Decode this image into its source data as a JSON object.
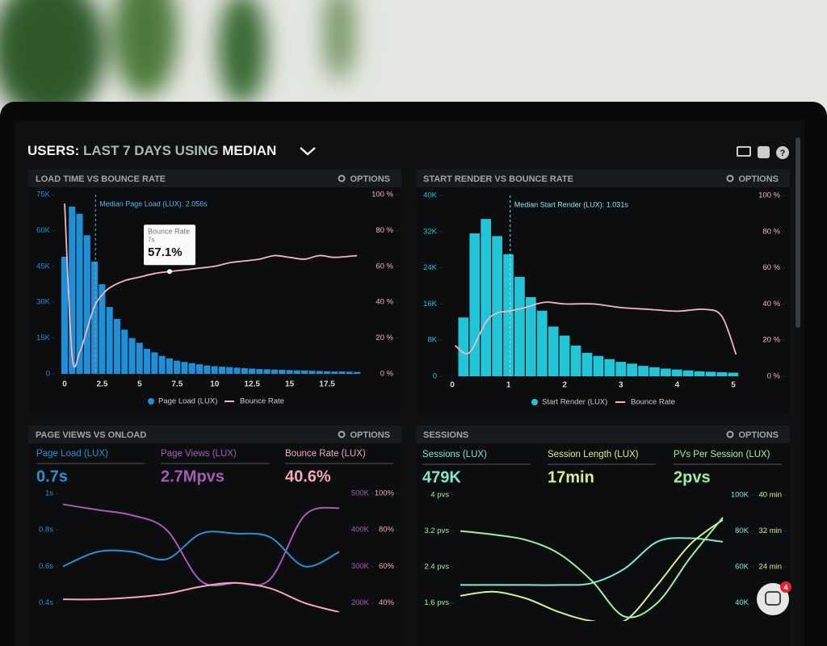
{
  "header": {
    "users": "USERS:",
    "range": "LAST 7 DAYS",
    "using": "USING",
    "stat": "MEDIAN"
  },
  "notification_count": "4",
  "chart_data": [
    {
      "type": "histogram",
      "title": "LOAD TIME VS BOUNCE RATE",
      "options": "OPTIONS",
      "bins": [
        -0.25,
        0.25,
        0.75,
        1.25,
        1.75,
        2.25,
        2.75,
        3.25,
        3.75,
        4.25,
        4.75,
        5.25,
        5.75,
        6.25,
        6.75,
        7.25,
        7.75,
        8.25,
        8.75,
        9.25,
        9.75,
        10.25,
        10.75,
        11.25,
        11.75,
        12.25,
        12.75,
        13.25,
        13.75,
        14.25,
        14.75,
        15.25,
        15.75,
        16.25,
        16.75,
        17.25,
        17.75,
        18.25,
        18.75,
        19.25,
        19.75
      ],
      "xlim": [
        -0.25,
        19.75
      ],
      "xticks": [
        0,
        2.5,
        5,
        7.5,
        10,
        12.5,
        15,
        17.5
      ],
      "ylim": [
        0,
        75000
      ],
      "yticks": [
        0,
        {
          "value": 15000,
          "label": "15K"
        },
        {
          "value": 30000,
          "label": "30K"
        },
        {
          "value": 45000,
          "label": "45K"
        },
        {
          "value": 60000,
          "label": "60K"
        },
        {
          "value": 75000,
          "label": "75K"
        }
      ],
      "y2lim": [
        0,
        100
      ],
      "y2ticks": [
        {
          "value": 0,
          "label": "0 %"
        },
        {
          "value": 20,
          "label": "20 %"
        },
        {
          "value": 40,
          "label": "40 %"
        },
        {
          "value": 60,
          "label": "60 %"
        },
        {
          "value": 80,
          "label": "80 %"
        },
        {
          "value": 100,
          "label": "100 %"
        }
      ],
      "series": [
        {
          "name": "Page Load (LUX)",
          "color": "#1f8fd8",
          "values": [
            49000,
            70000,
            67000,
            58000,
            47000,
            37500,
            28000,
            23000,
            18500,
            15000,
            13000,
            10500,
            9000,
            7500,
            6500,
            5500,
            5000,
            4500,
            4000,
            3500,
            3200,
            3000,
            2800,
            2600,
            2400,
            2200,
            2000,
            1900,
            1800,
            1700,
            1600,
            1500,
            1400,
            1300,
            1200,
            1100,
            1000,
            1000,
            900,
            800
          ]
        },
        {
          "name": "Bounce Rate",
          "color": "#f2b6c0",
          "axis": "y2",
          "x": [
            0,
            0.5,
            1,
            1.5,
            2,
            2.5,
            3,
            4,
            5,
            6,
            7,
            8,
            9,
            10,
            11,
            12,
            13,
            14,
            15,
            16,
            17,
            18,
            19.5
          ],
          "values": [
            95,
            10,
            12,
            25,
            38,
            44,
            48,
            52,
            54,
            56,
            57.1,
            58,
            59,
            60,
            62,
            63,
            64,
            66,
            65,
            64,
            66,
            65,
            66
          ]
        }
      ],
      "annotation": {
        "text": "Median Page Load (LUX): 2.056s",
        "x": 2.056
      },
      "tooltip": {
        "title": "Bounce Rate",
        "x_label": "7s",
        "x": 7,
        "value_label": "57.1%",
        "value": 57.1
      }
    },
    {
      "type": "histogram",
      "title": "START RENDER VS BOUNCE RATE",
      "options": "OPTIONS",
      "bins": [
        0.1,
        0.3,
        0.5,
        0.7,
        0.9,
        1.1,
        1.3,
        1.5,
        1.7,
        1.9,
        2.1,
        2.3,
        2.5,
        2.7,
        2.9,
        3.1,
        3.3,
        3.5,
        3.7,
        3.9,
        4.1,
        4.3,
        4.5,
        4.7,
        4.9,
        5.1
      ],
      "xlim": [
        0,
        5.2
      ],
      "xticks": [
        0,
        1,
        2,
        3,
        4,
        5
      ],
      "ylim": [
        0,
        40000
      ],
      "yticks": [
        0,
        {
          "value": 8000,
          "label": "8K"
        },
        {
          "value": 16000,
          "label": "16K"
        },
        {
          "value": 24000,
          "label": "24K"
        },
        {
          "value": 32000,
          "label": "32K"
        },
        {
          "value": 40000,
          "label": "40K"
        }
      ],
      "y2lim": [
        0,
        100
      ],
      "y2ticks": [
        {
          "value": 0,
          "label": "0 %"
        },
        {
          "value": 20,
          "label": "20 %"
        },
        {
          "value": 40,
          "label": "40 %"
        },
        {
          "value": 60,
          "label": "60 %"
        },
        {
          "value": 80,
          "label": "80 %"
        },
        {
          "value": 100,
          "label": "100 %"
        }
      ],
      "series": [
        {
          "name": "Start Render (LUX)",
          "color": "#20c6d8",
          "values": [
            13000,
            31600,
            34800,
            31000,
            27000,
            22000,
            17500,
            14500,
            11000,
            9000,
            6800,
            5200,
            4500,
            3800,
            3200,
            2800,
            2300,
            2000,
            1700,
            1500,
            1300,
            1100,
            1000,
            900,
            800
          ]
        },
        {
          "name": "Bounce Rate",
          "color": "#f2b6c0",
          "axis": "y2",
          "x": [
            0.05,
            0.3,
            0.6,
            0.8,
            1,
            1.3,
            1.5,
            1.7,
            2,
            2.5,
            3,
            3.5,
            4,
            4.5,
            4.8,
            5.05
          ],
          "values": [
            17,
            13,
            30,
            35,
            36,
            38,
            40,
            41,
            40,
            40,
            38,
            37,
            36,
            37,
            33,
            12
          ]
        }
      ],
      "annotation": {
        "text": "Median Start Render (LUX): 1.031s",
        "x": 1.031
      }
    },
    {
      "type": "line",
      "title": "PAGE VIEWS VS ONLOAD",
      "options": "OPTIONS",
      "categories": [
        null,
        null,
        null,
        null,
        null,
        null,
        null,
        null,
        null
      ],
      "ylim": [
        0.35,
        1
      ],
      "yticks": [
        {
          "value": 1,
          "label": "1s"
        },
        {
          "value": 0.8,
          "label": "0.8s"
        },
        {
          "value": 0.6,
          "label": "0.6s"
        },
        {
          "value": 0.4,
          "label": "0.4s"
        }
      ],
      "y2lim": [
        175000,
        500000
      ],
      "y2ticks": [
        {
          "value": 500000,
          "label": "500K"
        },
        {
          "value": 400000,
          "label": "400K"
        },
        {
          "value": 300000,
          "label": "300K"
        },
        {
          "value": 200000,
          "label": "200K"
        }
      ],
      "y3lim": [
        35,
        100
      ],
      "y3ticks": [
        {
          "value": 100,
          "label": "100%"
        },
        {
          "value": 80,
          "label": "80%"
        },
        {
          "value": 60,
          "label": "60%"
        },
        {
          "value": 40,
          "label": "40%"
        }
      ],
      "series": [
        {
          "name": "Page Load (LUX)",
          "summary": "0.7s",
          "color": "#2e8fd0",
          "values": [
            0.6,
            0.68,
            0.68,
            0.64,
            0.78,
            0.78,
            0.76,
            0.6,
            0.68
          ]
        },
        {
          "name": "Page Views (LUX)",
          "summary": "2.7Mpvs",
          "color": "#a65cb6",
          "axis": "y2",
          "values": [
            470000,
            455000,
            440000,
            400000,
            260000,
            255000,
            265000,
            440000,
            460000
          ]
        },
        {
          "name": "Bounce Rate (LUX)",
          "summary": "40.6%",
          "color": "#f3a8b8",
          "axis": "y3",
          "values": [
            42,
            42,
            43,
            45,
            49,
            51,
            48,
            40,
            35
          ]
        }
      ]
    },
    {
      "type": "line",
      "title": "SESSIONS",
      "options": "OPTIONS",
      "categories": [
        null,
        null,
        null,
        null,
        null,
        null,
        null,
        null,
        null
      ],
      "ylim": [
        1.2,
        4
      ],
      "yticks": [
        {
          "value": 4,
          "label": "4 pvs"
        },
        {
          "value": 3.2,
          "label": "3.2 pvs"
        },
        {
          "value": 2.4,
          "label": "2.4 pvs"
        },
        {
          "value": 1.6,
          "label": "1.6 pvs"
        }
      ],
      "y2lim": [
        30000,
        100000
      ],
      "y2ticks": [
        {
          "value": 100000,
          "label": "100K"
        },
        {
          "value": 80000,
          "label": "80K"
        },
        {
          "value": 60000,
          "label": "60K"
        },
        {
          "value": 40000,
          "label": "40K"
        }
      ],
      "y3lim": [
        12,
        40
      ],
      "y3ticks": [
        {
          "value": 40,
          "label": "40 min"
        },
        {
          "value": 32,
          "label": "32 min"
        },
        {
          "value": 24,
          "label": "24 min"
        }
      ],
      "series": [
        {
          "name": "Sessions (LUX)",
          "summary": "479K",
          "color": "#7fe8cf",
          "axis": "y2",
          "values": [
            50000,
            50000,
            50000,
            50000,
            51000,
            59000,
            74000,
            76000,
            74000
          ]
        },
        {
          "name": "Session Length (LUX)",
          "summary": "17min",
          "color": "#d9ee94",
          "axis": "y3",
          "values": [
            17.6,
            18.5,
            17,
            14,
            12,
            12,
            20,
            29,
            34.5
          ]
        },
        {
          "name": "PVs Per Session (LUX)",
          "summary": "2pvs",
          "color": "#9ef0a6",
          "values": [
            3.2,
            3.12,
            3,
            2.7,
            2.1,
            1.3,
            1.6,
            2.6,
            3.5
          ]
        }
      ]
    }
  ]
}
